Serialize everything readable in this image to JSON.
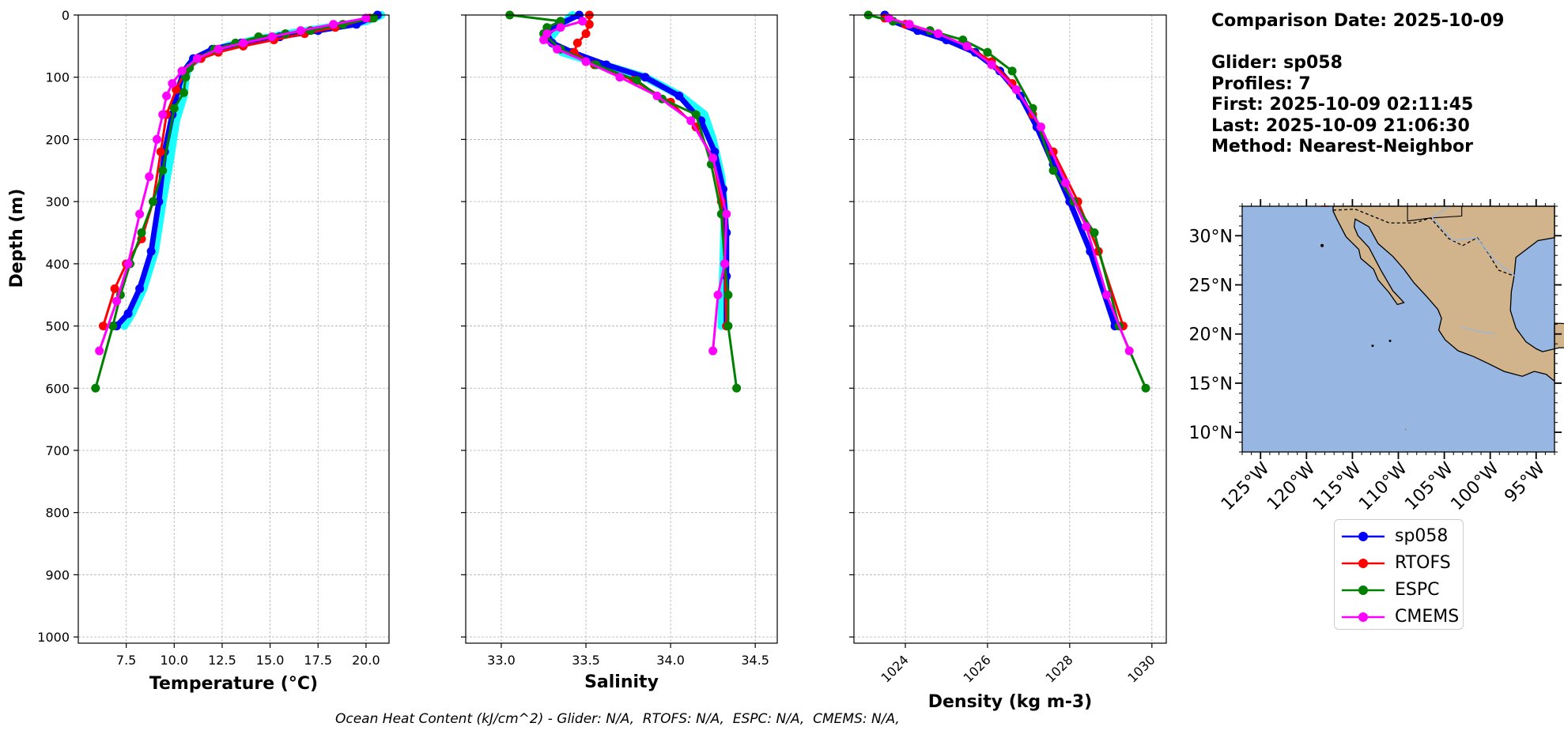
{
  "info": {
    "comparison_date": "Comparison Date: 2025-10-09",
    "glider": "Glider: sp058",
    "profiles": "Profiles: 7",
    "first": "First: 2025-10-09 02:11:45",
    "last": "Last: 2025-10-09 21:06:30",
    "method": "Method: Nearest-Neighbor"
  },
  "footer": "Ocean Heat Content (kJ/cm^2) - Glider: N/A,  RTOFS: N/A,  ESPC: N/A,  CMEMS: N/A,",
  "legend": [
    {
      "name": "sp058",
      "color": "#0000ff"
    },
    {
      "name": "RTOFS",
      "color": "#ff0000"
    },
    {
      "name": "ESPC",
      "color": "#008000"
    },
    {
      "name": "CMEMS",
      "color": "#ff00ff"
    }
  ],
  "chart_data": [
    {
      "type": "line",
      "title": "",
      "xlabel": "Temperature (°C)",
      "ylabel": "Depth (m)",
      "xlim": [
        5.0,
        21.2
      ],
      "ylim": [
        1010,
        0
      ],
      "xticks": [
        7.5,
        10.0,
        12.5,
        15.0,
        17.5,
        20.0
      ],
      "xtick_labels": [
        "7.5",
        "10.0",
        "12.5",
        "15.0",
        "17.5",
        "20.0"
      ],
      "yticks": [
        0,
        100,
        200,
        300,
        400,
        500,
        600,
        700,
        800,
        900,
        1000
      ],
      "grid": true,
      "series": [
        {
          "name": "glider-spread",
          "color": "#00ffff",
          "x": [
            20.8,
            20.0,
            18.0,
            16.0,
            14.2,
            12.8,
            11.5,
            10.8,
            10.6,
            10.5,
            10.1,
            9.8,
            9.4,
            9.0,
            8.4,
            7.8,
            7.4
          ],
          "y": [
            0,
            10,
            20,
            30,
            40,
            50,
            65,
            80,
            100,
            130,
            170,
            230,
            300,
            380,
            440,
            480,
            500
          ]
        },
        {
          "name": "sp058",
          "color": "#0000ff",
          "x": [
            20.6,
            19.5,
            17.5,
            15.5,
            13.5,
            12.0,
            11.0,
            10.5,
            10.2,
            9.9,
            9.5,
            9.2,
            8.8,
            8.2,
            7.6,
            7.0
          ],
          "y": [
            0,
            15,
            25,
            35,
            45,
            55,
            70,
            90,
            120,
            160,
            220,
            300,
            380,
            440,
            480,
            500
          ]
        },
        {
          "name": "RTOFS",
          "color": "#ff0000",
          "x": [
            20.2,
            18.4,
            16.8,
            15.2,
            13.6,
            12.3,
            11.4,
            10.6,
            10.1,
            9.6,
            9.3,
            8.9,
            8.3,
            7.5,
            6.9,
            6.3
          ],
          "y": [
            5,
            20,
            30,
            40,
            50,
            60,
            70,
            90,
            120,
            160,
            220,
            300,
            360,
            400,
            440,
            500
          ]
        },
        {
          "name": "ESPC",
          "color": "#008000",
          "x": [
            20.4,
            18.8,
            17.1,
            15.8,
            14.4,
            13.2,
            12.1,
            11.2,
            10.8,
            10.6,
            10.5,
            10.0,
            9.4,
            8.9,
            8.3,
            7.7,
            7.2,
            6.8,
            5.9
          ],
          "y": [
            5,
            15,
            25,
            30,
            35,
            45,
            55,
            70,
            85,
            100,
            125,
            150,
            250,
            300,
            350,
            400,
            450,
            500,
            600
          ]
        },
        {
          "name": "CMEMS",
          "color": "#ff00ff",
          "x": [
            20.0,
            18.3,
            16.6,
            15.1,
            13.6,
            12.3,
            11.2,
            10.4,
            9.9,
            9.6,
            9.4,
            9.1,
            8.7,
            8.2,
            7.6,
            7.0,
            6.1
          ],
          "y": [
            5,
            15,
            25,
            35,
            45,
            55,
            70,
            90,
            110,
            130,
            160,
            200,
            260,
            320,
            400,
            460,
            540
          ]
        }
      ]
    },
    {
      "type": "line",
      "title": "",
      "xlabel": "Salinity",
      "ylabel": "",
      "xlim": [
        32.79,
        34.63
      ],
      "ylim": [
        1010,
        0
      ],
      "xticks": [
        33.0,
        33.5,
        34.0,
        34.5
      ],
      "xtick_labels": [
        "33.0",
        "33.5",
        "34.0",
        "34.5"
      ],
      "yticks": [
        0,
        100,
        200,
        300,
        400,
        500,
        600,
        700,
        800,
        900,
        1000
      ],
      "grid": true,
      "series": [
        {
          "name": "glider-spread",
          "color": "#00ffff",
          "x": [
            33.42,
            33.34,
            33.28,
            33.36,
            33.6,
            33.85,
            34.06,
            34.2,
            34.25,
            34.3,
            34.32,
            34.3
          ],
          "y": [
            0,
            20,
            40,
            60,
            80,
            100,
            130,
            160,
            200,
            260,
            320,
            500
          ]
        },
        {
          "name": "sp058",
          "color": "#0000ff",
          "x": [
            33.46,
            33.34,
            33.27,
            33.3,
            33.42,
            33.62,
            33.85,
            34.05,
            34.18,
            34.26,
            34.31,
            34.33,
            34.33,
            34.33
          ],
          "y": [
            0,
            15,
            30,
            45,
            60,
            80,
            100,
            130,
            170,
            220,
            280,
            350,
            420,
            500
          ]
        },
        {
          "name": "RTOFS",
          "color": "#ff0000",
          "x": [
            33.52,
            33.52,
            33.5,
            33.45,
            33.43,
            33.55,
            33.78,
            34.0,
            34.15,
            34.25,
            34.3,
            34.32,
            34.33
          ],
          "y": [
            0,
            15,
            30,
            45,
            60,
            80,
            105,
            140,
            180,
            230,
            300,
            400,
            500
          ]
        },
        {
          "name": "ESPC",
          "color": "#008000",
          "x": [
            33.05,
            33.35,
            33.27,
            33.25,
            33.35,
            33.56,
            33.8,
            33.95,
            34.15,
            34.24,
            34.3,
            34.32,
            34.34,
            34.34,
            34.39
          ],
          "y": [
            0,
            10,
            20,
            30,
            55,
            80,
            105,
            135,
            160,
            240,
            320,
            400,
            450,
            500,
            600
          ]
        },
        {
          "name": "CMEMS",
          "color": "#ff00ff",
          "x": [
            33.48,
            33.35,
            33.27,
            33.25,
            33.33,
            33.5,
            33.7,
            33.92,
            34.12,
            34.25,
            34.33,
            34.32,
            34.28,
            34.25
          ],
          "y": [
            10,
            20,
            30,
            40,
            55,
            75,
            100,
            130,
            170,
            230,
            320,
            400,
            450,
            540
          ]
        }
      ]
    },
    {
      "type": "line",
      "title": "",
      "xlabel": "Density (kg m-3)",
      "ylabel": "",
      "xlim": [
        1022.75,
        1030.35
      ],
      "ylim": [
        1010,
        0
      ],
      "xticks": [
        1024,
        1026,
        1028,
        1030
      ],
      "xtick_labels": [
        "1024",
        "1026",
        "1028",
        "1030"
      ],
      "yticks": [
        0,
        100,
        200,
        300,
        400,
        500,
        600,
        700,
        800,
        900,
        1000
      ],
      "grid": true,
      "series": [
        {
          "name": "sp058",
          "color": "#0000ff",
          "x": [
            1023.5,
            1023.7,
            1024.3,
            1025.0,
            1025.7,
            1026.3,
            1026.8,
            1027.2,
            1027.6,
            1028.0,
            1028.5,
            1029.1
          ],
          "y": [
            0,
            10,
            25,
            40,
            60,
            90,
            130,
            180,
            240,
            300,
            380,
            500
          ]
        },
        {
          "name": "RTOFS",
          "color": "#ff0000",
          "x": [
            1023.5,
            1024.0,
            1024.8,
            1025.5,
            1026.1,
            1026.6,
            1027.1,
            1027.6,
            1028.2,
            1028.7,
            1029.3
          ],
          "y": [
            5,
            15,
            30,
            50,
            75,
            110,
            160,
            220,
            300,
            380,
            500
          ]
        },
        {
          "name": "ESPC",
          "color": "#008000",
          "x": [
            1023.1,
            1023.7,
            1024.6,
            1025.4,
            1026.0,
            1026.6,
            1027.1,
            1027.6,
            1028.1,
            1028.6,
            1029.2,
            1029.85
          ],
          "y": [
            0,
            10,
            25,
            40,
            60,
            90,
            150,
            250,
            300,
            350,
            500,
            600
          ]
        },
        {
          "name": "CMEMS",
          "color": "#ff00ff",
          "x": [
            1023.6,
            1024.1,
            1024.8,
            1025.5,
            1026.1,
            1026.7,
            1027.3,
            1027.9,
            1028.4,
            1028.9,
            1029.45
          ],
          "y": [
            5,
            15,
            30,
            50,
            80,
            120,
            180,
            270,
            340,
            450,
            540
          ]
        }
      ]
    },
    {
      "type": "map",
      "title": "",
      "lon_range": [
        -127,
        -93
      ],
      "lat_range": [
        8,
        33
      ],
      "lat_tick_labels": [
        "30°N",
        "25°N",
        "20°N",
        "15°N",
        "10°N"
      ],
      "lon_tick_labels": [
        "125°W",
        "120°W",
        "115°W",
        "110°W",
        "105°W",
        "100°W",
        "95°W"
      ],
      "ocean_color": "#97b6e1",
      "land_color": "#d2b48c"
    }
  ]
}
